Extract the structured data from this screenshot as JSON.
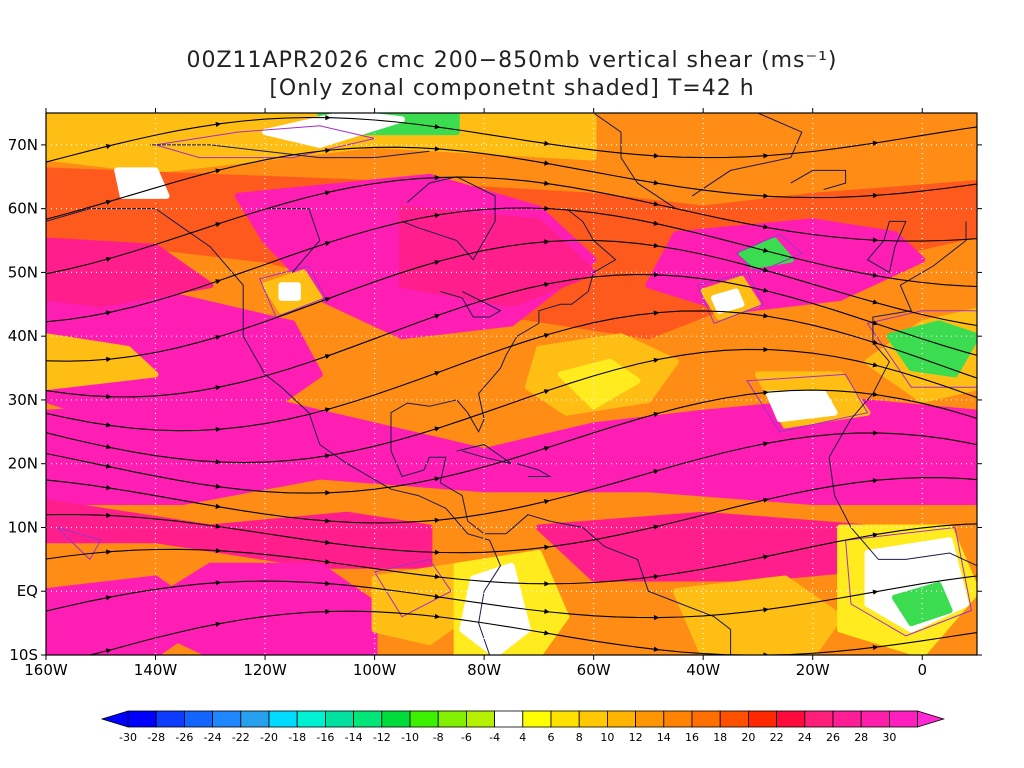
{
  "title": {
    "line1": "00Z11APR2026 cmc 200−850mb vertical shear (ms⁻¹)",
    "line2": "[Only zonal componetnt shaded] T=42 h"
  },
  "map": {
    "lon_range": [
      -160,
      10
    ],
    "lat_range": [
      -10,
      75
    ],
    "lat_labels": [
      {
        "lat": 70,
        "text": "70N"
      },
      {
        "lat": 60,
        "text": "60N"
      },
      {
        "lat": 50,
        "text": "50N"
      },
      {
        "lat": 40,
        "text": "40N"
      },
      {
        "lat": 30,
        "text": "30N"
      },
      {
        "lat": 20,
        "text": "20N"
      },
      {
        "lat": 10,
        "text": "10N"
      },
      {
        "lat": 0,
        "text": "EQ"
      },
      {
        "lat": -10,
        "text": "10S"
      }
    ],
    "lon_labels": [
      {
        "lon": -160,
        "text": "160W"
      },
      {
        "lon": -140,
        "text": "140W"
      },
      {
        "lon": -120,
        "text": "120W"
      },
      {
        "lon": -100,
        "text": "100W"
      },
      {
        "lon": -80,
        "text": "80W"
      },
      {
        "lon": -60,
        "text": "60W"
      },
      {
        "lon": -40,
        "text": "40W"
      },
      {
        "lon": -20,
        "text": "20W"
      },
      {
        "lon": 0,
        "text": "0"
      }
    ],
    "gridlines": "dotted"
  },
  "colorbar": {
    "labels": [
      "-30",
      "-28",
      "-26",
      "-24",
      "-22",
      "-20",
      "-18",
      "-16",
      "-14",
      "-12",
      "-10",
      "-8",
      "-6",
      "-4",
      "4",
      "6",
      "8",
      "10",
      "12",
      "14",
      "16",
      "18",
      "20",
      "22",
      "24",
      "26",
      "28",
      "30"
    ],
    "colors": [
      "#0000ff",
      "#0d3bff",
      "#1464ff",
      "#1e87ff",
      "#28a0f0",
      "#00dcff",
      "#00f0d2",
      "#00e1a0",
      "#00e678",
      "#00dc3c",
      "#3cf000",
      "#82f000",
      "#b4f000",
      "#ffffff",
      "#ffff00",
      "#ffe100",
      "#ffc800",
      "#ffb400",
      "#ff9600",
      "#ff8200",
      "#ff6e00",
      "#ff5000",
      "#ff2800",
      "#ff0a3c",
      "#ff1e78",
      "#ff1e96",
      "#ff1eaa",
      "#ff1ebe"
    ],
    "end_colors": {
      "low": "#0000ff",
      "high": "#ff28d2"
    }
  },
  "palette": {
    "shear_30": "#ff1eb4",
    "shear_26": "#ff1e8c",
    "shear_22": "#ff2850",
    "shear_18": "#ff5a1e",
    "shear_14": "#ff8c14",
    "shear_10": "#ffbe14",
    "shear_6": "#ffeb1e",
    "low": "#ffffff",
    "easterly": "#3cdc50",
    "contour": "#a030c8"
  },
  "streamlines": "black with arrowheads"
}
